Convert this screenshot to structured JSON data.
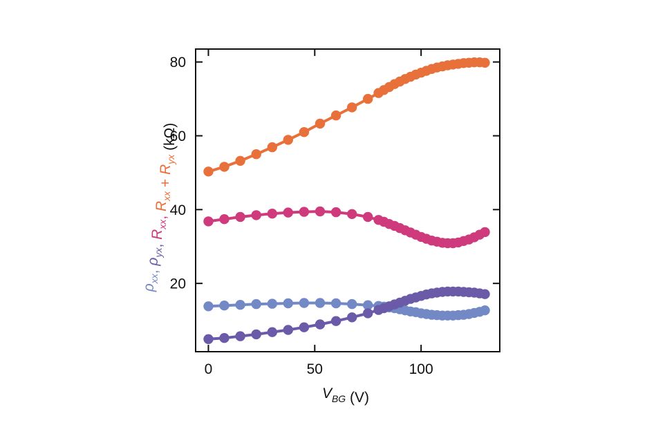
{
  "chart_data": {
    "type": "line",
    "title": "",
    "xlabel": {
      "symbol": "V",
      "subscript": "BG",
      "unit": " (V)"
    },
    "ylabel": {
      "parts": [
        {
          "symbol": "ρ",
          "subscript": "xx",
          "color": "#7289c6"
        },
        {
          "text": ", ",
          "color": "#7289c6"
        },
        {
          "symbol": "ρ",
          "subscript": "yx",
          "color": "#6a5aa8"
        },
        {
          "text": ", ",
          "color": "#6a5aa8"
        },
        {
          "symbol": "R",
          "subscript": "xx",
          "color": "#cf3a7c"
        },
        {
          "text": ", ",
          "color": "#cf3a7c"
        },
        {
          "symbol": "R",
          "subscript": "xx",
          "color": "#e8703a"
        },
        {
          "text": " + ",
          "color": "#e8703a"
        },
        {
          "symbol": "R",
          "subscript": "yx",
          "color": "#e8703a"
        }
      ],
      "unit": " (kΩ)"
    },
    "xlim": [
      -6,
      137
    ],
    "ylim": [
      1.5,
      83.5
    ],
    "xticks": [
      0,
      50,
      100
    ],
    "yticks": [
      20,
      40,
      60,
      80
    ],
    "x": [
      0,
      7.5,
      15,
      22.5,
      30,
      37.5,
      45,
      52.5,
      60,
      67.5,
      75,
      80,
      82.5,
      85,
      87.5,
      90,
      92.5,
      95,
      97.5,
      100,
      102.5,
      105,
      107.5,
      110,
      112.5,
      115,
      117.5,
      120,
      122.5,
      125,
      127.5,
      130
    ],
    "series": [
      {
        "name": "Rxx + Ryx",
        "color": "#e8703a",
        "values": [
          50.3,
          51.6,
          53.2,
          55.0,
          56.9,
          58.9,
          61.0,
          63.3,
          65.5,
          67.7,
          70.0,
          71.6,
          72.4,
          73.2,
          74.0,
          74.7,
          75.4,
          76.0,
          76.6,
          77.1,
          77.6,
          78.1,
          78.5,
          78.8,
          79.1,
          79.3,
          79.5,
          79.7,
          79.8,
          79.9,
          79.9,
          79.8
        ]
      },
      {
        "name": "Rxx",
        "color": "#cf3a7c",
        "values": [
          36.8,
          37.4,
          38.0,
          38.5,
          38.9,
          39.2,
          39.4,
          39.5,
          39.3,
          38.8,
          38.0,
          37.2,
          36.7,
          36.1,
          35.6,
          35.0,
          34.4,
          33.8,
          33.2,
          32.6,
          32.1,
          31.6,
          31.3,
          31.0,
          30.9,
          30.9,
          31.1,
          31.5,
          31.9,
          32.5,
          33.2,
          33.9
        ]
      },
      {
        "name": "ρxx",
        "color": "#7289c6",
        "values": [
          13.8,
          14.0,
          14.2,
          14.4,
          14.5,
          14.6,
          14.7,
          14.7,
          14.6,
          14.4,
          14.1,
          13.9,
          13.7,
          13.5,
          13.3,
          13.0,
          12.7,
          12.4,
          12.2,
          11.9,
          11.7,
          11.5,
          11.4,
          11.3,
          11.3,
          11.3,
          11.4,
          11.5,
          11.7,
          12.0,
          12.3,
          12.7
        ]
      },
      {
        "name": "ρyx",
        "color": "#6a5aa8",
        "values": [
          4.9,
          5.2,
          5.7,
          6.2,
          6.8,
          7.4,
          8.1,
          8.9,
          9.8,
          10.8,
          11.9,
          12.8,
          13.3,
          13.8,
          14.3,
          14.8,
          15.3,
          15.8,
          16.2,
          16.6,
          17.0,
          17.3,
          17.5,
          17.7,
          17.8,
          17.8,
          17.8,
          17.7,
          17.6,
          17.5,
          17.3,
          17.1
        ]
      }
    ]
  }
}
